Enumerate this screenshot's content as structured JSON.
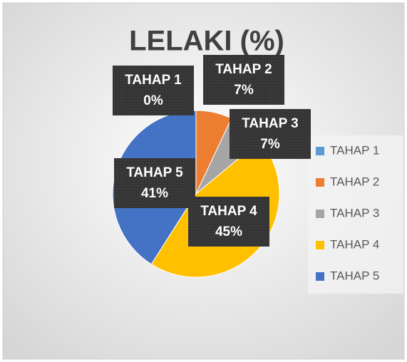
{
  "chart_data": {
    "type": "pie",
    "title": "LELAKI (%)",
    "categories": [
      "TAHAP 1",
      "TAHAP 2",
      "TAHAP 3",
      "TAHAP 4",
      "TAHAP 5"
    ],
    "values": [
      0,
      7,
      7,
      45,
      41
    ],
    "value_labels": [
      "0%",
      "7%",
      "7%",
      "45%",
      "41%"
    ],
    "colors": [
      "#5b9bd5",
      "#ed7d31",
      "#a5a5a5",
      "#ffc000",
      "#4472c4"
    ],
    "legend": "right"
  }
}
